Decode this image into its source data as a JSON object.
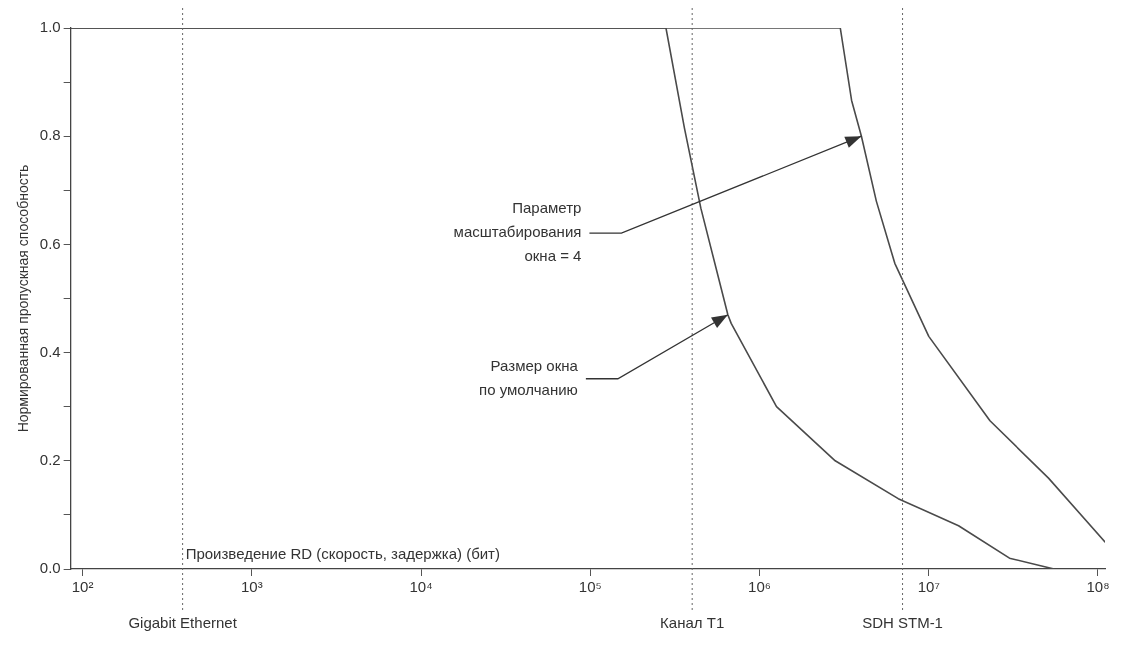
{
  "chart_data": {
    "type": "line",
    "xlabel": "Произведение RD (скорость, задержка) (бит)",
    "ylabel": "Нормированная пропускная способность",
    "log": "x",
    "xlim": [
      85,
      110000000
    ],
    "xticks": [
      {
        "value": 100,
        "label": "10²"
      },
      {
        "value": 1000,
        "label": "10³"
      },
      {
        "value": 10000,
        "label": "10⁴"
      },
      {
        "value": 100000,
        "label": "10⁵"
      },
      {
        "value": 1000000,
        "label": "10⁶"
      },
      {
        "value": 10000000,
        "label": "10⁷"
      },
      {
        "value": 100000000,
        "label": "10⁸"
      }
    ],
    "ylim": [
      0,
      1
    ],
    "yticks": [
      {
        "value": 0,
        "label": "0.0"
      },
      {
        "value": 0.1,
        "label": null
      },
      {
        "value": 0.2,
        "label": "0.2"
      },
      {
        "value": 0.3,
        "label": null
      },
      {
        "value": 0.4,
        "label": "0.4"
      },
      {
        "value": 0.5,
        "label": null
      },
      {
        "value": 0.6,
        "label": "0.6"
      },
      {
        "value": 0.7,
        "label": null
      },
      {
        "value": 0.8,
        "label": "0.8"
      },
      {
        "value": 0.9,
        "label": null
      },
      {
        "value": 1,
        "label": "1.0"
      }
    ],
    "marker": "none",
    "line_style": "solid",
    "series": [
      {
        "color": "#4a4a4a",
        "x": [
          85,
          280000,
          360000,
          450000,
          650000,
          680000,
          1260000,
          2800000,
          6600000,
          15000000,
          30000000,
          55000000
        ],
        "values": [
          1,
          1,
          0.815,
          0.667,
          0.47,
          0.454,
          0.3,
          0.2,
          0.13,
          0.08,
          0.02,
          0
        ]
      },
      {
        "color": "#4a4a4a",
        "x": [
          85,
          3000000,
          3500000,
          4000000,
          4900000,
          6300000,
          10000000,
          23000000,
          51000000,
          110000000
        ],
        "values": [
          1,
          1,
          0.866,
          0.8,
          0.68,
          0.565,
          0.43,
          0.274,
          0.168,
          0.05
        ]
      }
    ],
    "ref_lines": [
      {
        "axis": "x",
        "value": 390,
        "label": "Gigabit Ethernet",
        "line_style": "dotted",
        "color": "#666666"
      },
      {
        "axis": "x",
        "value": 400000,
        "label": "Канал T1",
        "line_style": "dotted",
        "color": "#666666"
      },
      {
        "axis": "x",
        "value": 7000000,
        "label": "SDH STM-1",
        "line_style": "dotted",
        "color": "#666666"
      }
    ],
    "annotations": [
      {
        "text": "Параметр\nмасштабирования\nокна = 4",
        "x": 4000000,
        "y": 0.8
      },
      {
        "text": "Размер окна\nпо умолчанию",
        "x": 650000,
        "y": 0.47
      }
    ]
  }
}
